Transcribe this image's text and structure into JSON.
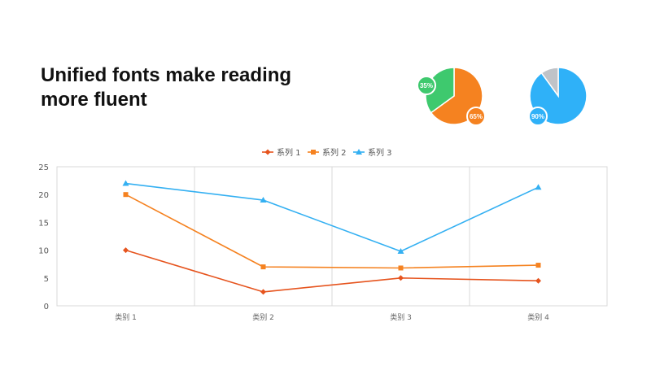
{
  "slide": {
    "title_lines": [
      "Unified fonts make reading",
      "more fluent"
    ]
  },
  "colors": {
    "series1": "#e6541e",
    "series2": "#f58220",
    "series3": "#34b0f2",
    "pie1_a": "#f58220",
    "pie1_b": "#3ec96e",
    "pie2_a": "#2fb1f8",
    "pie2_b": "#bfc3c8"
  },
  "pies": [
    {
      "slices": [
        {
          "label": "65%",
          "value": 65,
          "color_key": "pie1_a"
        },
        {
          "label": "35%",
          "value": 35,
          "color_key": "pie1_b"
        }
      ]
    },
    {
      "slices": [
        {
          "label": "90%",
          "value": 90,
          "color_key": "pie2_a"
        },
        {
          "value": 10,
          "color_key": "pie2_b"
        }
      ]
    }
  ],
  "chart_data": {
    "type": "line",
    "categories": [
      "类别 1",
      "类别 2",
      "类别 3",
      "类别 4"
    ],
    "series": [
      {
        "name": "系列 1",
        "values": [
          10,
          2.5,
          5,
          4.5
        ],
        "marker": "diamond",
        "color_key": "series1"
      },
      {
        "name": "系列 2",
        "values": [
          20,
          7,
          6.8,
          7.3
        ],
        "marker": "square",
        "color_key": "series2"
      },
      {
        "name": "系列 3",
        "values": [
          22,
          19,
          9.8,
          21.3
        ],
        "marker": "triangle",
        "color_key": "series3"
      }
    ],
    "ylim": [
      0,
      25
    ],
    "yticks": [
      "0",
      "5",
      "10",
      "15",
      "20",
      "25"
    ],
    "legend": "top-center",
    "grid": "vertical"
  }
}
